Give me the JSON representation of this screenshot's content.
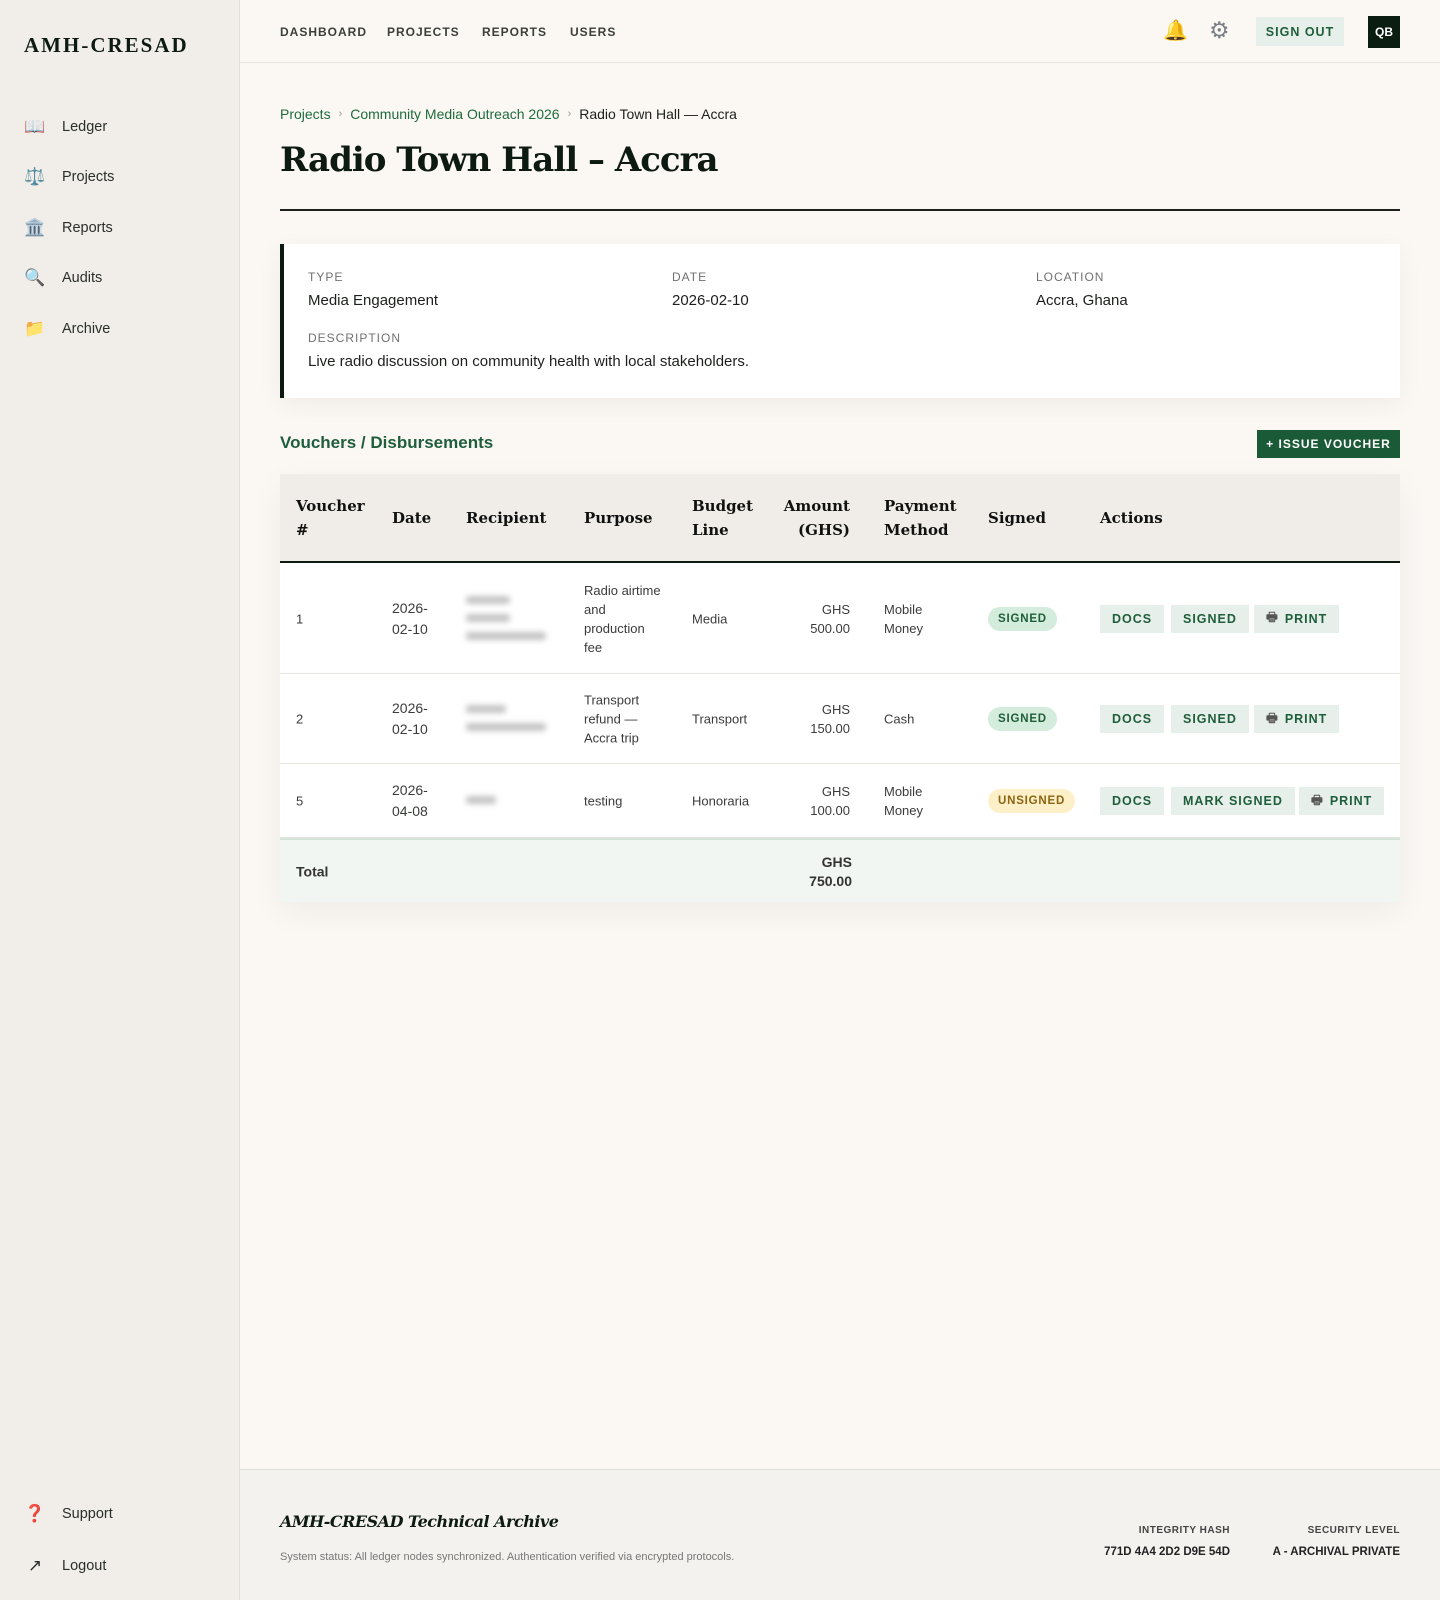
{
  "app": {
    "logo": "AMH-CRESAD"
  },
  "sidebar": {
    "items": [
      {
        "label": "Ledger",
        "icon": "book-icon",
        "glyph": "📖"
      },
      {
        "label": "Projects",
        "icon": "scales-icon",
        "glyph": "⚖️"
      },
      {
        "label": "Reports",
        "icon": "bank-icon",
        "glyph": "🏛️"
      },
      {
        "label": "Audits",
        "icon": "magnifier-icon",
        "glyph": "🔍"
      },
      {
        "label": "Archive",
        "icon": "folder-icon",
        "glyph": "📁"
      }
    ],
    "bottom": [
      {
        "label": "Support",
        "icon": "question-icon",
        "glyph": "❓"
      },
      {
        "label": "Logout",
        "icon": "logout-icon",
        "glyph": "↗"
      }
    ]
  },
  "topnav": {
    "items": [
      "DASHBOARD",
      "PROJECTS",
      "REPORTS",
      "USERS"
    ],
    "sign_out": "SIGN OUT",
    "avatar": "QB"
  },
  "breadcrumb": [
    "Projects",
    "Community Media Outreach 2026",
    "Radio Town Hall — Accra"
  ],
  "page_title": "Radio Town Hall – Accra",
  "details": {
    "type_label": "TYPE",
    "type": "Media Engagement",
    "date_label": "DATE",
    "date": "2026-02-10",
    "location_label": "LOCATION",
    "location": "Accra, Ghana",
    "description_label": "DESCRIPTION",
    "description": "Live radio discussion on community health with local stakeholders."
  },
  "vouchers": {
    "title": "Vouchers / Disbursements",
    "issue_button": "+ ISSUE VOUCHER",
    "columns": [
      "Voucher #",
      "Date",
      "Recipient",
      "Purpose",
      "Budget Line",
      "Amount (GHS)",
      "Payment Method",
      "Signed",
      "Actions"
    ],
    "rows": [
      {
        "num": "1",
        "date": "2026-02-10",
        "purpose": "Radio airtime and production fee",
        "budget": "Media",
        "amount": "GHS 500.00",
        "method": "Mobile Money",
        "signed": "SIGNED",
        "status": "signed",
        "actions": [
          "DOCS",
          "SIGNED",
          "PRINT"
        ]
      },
      {
        "num": "2",
        "date": "2026-02-10",
        "purpose": "Transport refund — Accra trip",
        "budget": "Transport",
        "amount": "GHS 150.00",
        "method": "Cash",
        "signed": "SIGNED",
        "status": "signed",
        "actions": [
          "DOCS",
          "SIGNED",
          "PRINT"
        ]
      },
      {
        "num": "5",
        "date": "2026-04-08",
        "purpose": "testing",
        "budget": "Honoraria",
        "amount": "GHS 100.00",
        "method": "Mobile Money",
        "signed": "UNSIGNED",
        "status": "unsigned",
        "actions": [
          "DOCS",
          "MARK SIGNED",
          "PRINT"
        ]
      }
    ],
    "total_label": "Total",
    "total": "GHS 750.00"
  },
  "footer": {
    "title": "AMH-CRESAD Technical Archive",
    "status": "System status: All ledger nodes synchronized. Authentication verified via encrypted protocols.",
    "hash_label": "INTEGRITY HASH",
    "hash": "771D 4A4 2D2 D9E 54D",
    "security_label": "SECURITY LEVEL",
    "security": "A - ARCHIVAL PRIVATE"
  },
  "colors": {
    "accent": "#1b5a36",
    "ink": "#0d1a12",
    "signed_bg": "#d3ecdc",
    "unsigned_bg": "#fdf0c8"
  }
}
